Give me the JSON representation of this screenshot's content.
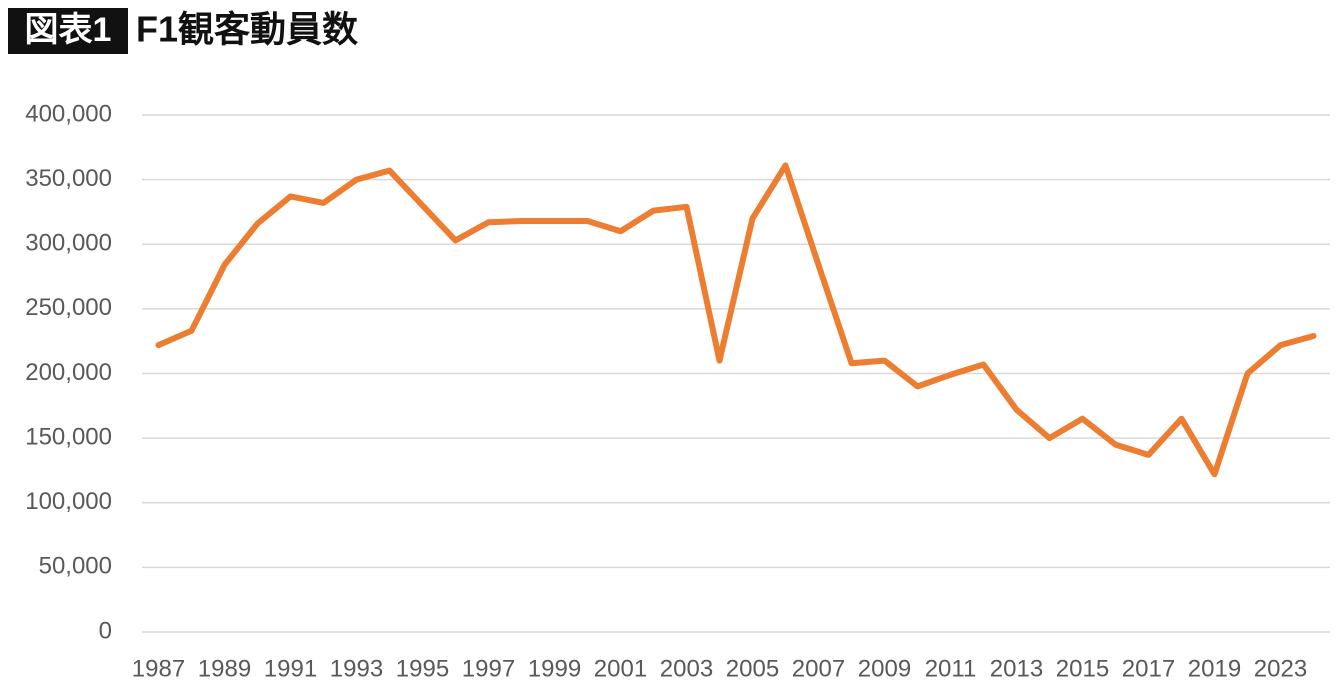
{
  "chart_data": {
    "type": "line",
    "title_badge": "図表1",
    "title": "F1観客動員数",
    "categories": [
      "1987",
      null,
      "1989",
      null,
      "1991",
      null,
      "1993",
      null,
      "1995",
      null,
      "1997",
      null,
      "1999",
      null,
      "2001",
      null,
      "2003",
      null,
      "2005",
      null,
      "2007",
      null,
      "2009",
      null,
      "2011",
      null,
      "2013",
      null,
      "2015",
      null,
      "2017",
      null,
      "2019",
      null,
      "2023",
      null
    ],
    "series": [
      {
        "color": "#ed7d31",
        "values": [
          222000,
          233000,
          284000,
          316000,
          337000,
          332000,
          350000,
          357000,
          330000,
          303000,
          317000,
          318000,
          318000,
          318000,
          310000,
          326000,
          329000,
          210000,
          320000,
          361000,
          284000,
          208000,
          210000,
          190000,
          199000,
          207000,
          172000,
          150000,
          165000,
          145000,
          137000,
          165000,
          122000,
          200000,
          222000,
          229000
        ]
      }
    ],
    "ylim": [
      0,
      400000
    ],
    "yticks": [
      0,
      {
        "value": 50000,
        "label": "50,000"
      },
      {
        "value": 100000,
        "label": "100,000"
      },
      {
        "value": 150000,
        "label": "150,000"
      },
      {
        "value": 200000,
        "label": "200,000"
      },
      {
        "value": 250000,
        "label": "250,000"
      },
      {
        "value": 300000,
        "label": "300,000"
      },
      {
        "value": 350000,
        "label": "350,000"
      },
      {
        "value": 400000,
        "label": "400,000"
      }
    ],
    "grid": true
  }
}
